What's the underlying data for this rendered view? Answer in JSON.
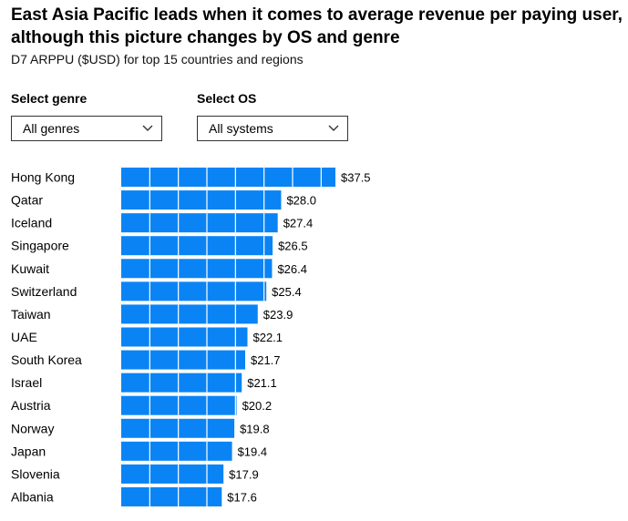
{
  "title": "East Asia Pacific leads when it comes to average revenue per paying user, although this picture changes by OS and genre",
  "subtitle": "D7 ARPPU ($USD) for top 15 countries and regions",
  "filters": {
    "genre": {
      "label": "Select genre",
      "value": "All genres"
    },
    "os": {
      "label": "Select OS",
      "value": "All systems"
    }
  },
  "colors": {
    "bar": "#0a84f5",
    "segment_divider": "#ffffff"
  },
  "chart_data": {
    "type": "bar",
    "orientation": "horizontal",
    "title": "D7 ARPPU ($USD) for top 15 countries and regions",
    "xlabel": "",
    "ylabel": "",
    "xlim": [
      0,
      37.5
    ],
    "value_prefix": "$",
    "grid": false,
    "categories": [
      "Hong Kong",
      "Qatar",
      "Iceland",
      "Singapore",
      "Kuwait",
      "Switzerland",
      "Taiwan",
      "UAE",
      "South Korea",
      "Israel",
      "Austria",
      "Norway",
      "Japan",
      "Slovenia",
      "Albania"
    ],
    "values": [
      37.5,
      28.0,
      27.4,
      26.5,
      26.4,
      25.4,
      23.9,
      22.1,
      21.7,
      21.1,
      20.2,
      19.8,
      19.4,
      17.9,
      17.6
    ],
    "labels": [
      "$37.5",
      "$28.0",
      "$27.4",
      "$26.5",
      "$26.4",
      "$25.4",
      "$23.9",
      "$22.1",
      "$21.7",
      "$21.1",
      "$20.2",
      "$19.8",
      "$19.4",
      "$17.9",
      "$17.6"
    ],
    "segment_step": 5
  }
}
